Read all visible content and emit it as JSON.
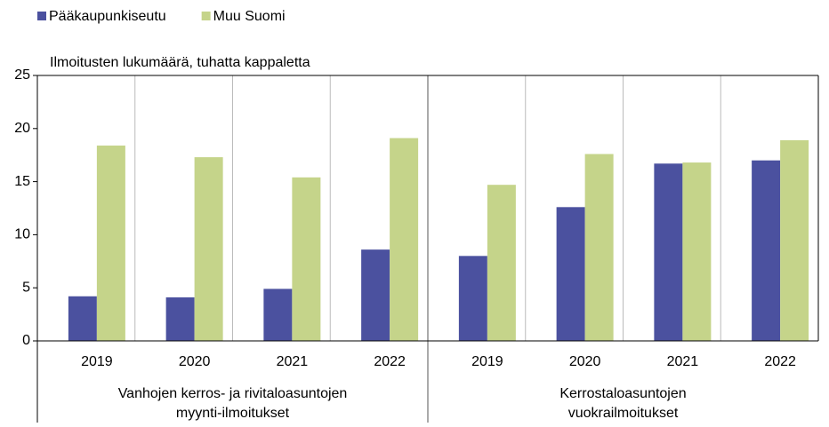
{
  "chart_data": {
    "type": "bar",
    "y_label": "Ilmoitusten lukumäärä, tuhatta kappaletta",
    "groups": [
      {
        "label": [
          "Vanhojen kerros- ja rivitaloasuntojen",
          "myynti-ilmoitukset"
        ],
        "categories": [
          "2019",
          "2020",
          "2021",
          "2022"
        ]
      },
      {
        "label": [
          "Kerrostaloasuntojen",
          "vuokrailmoitukset"
        ],
        "categories": [
          "2019",
          "2020",
          "2021",
          "2022"
        ]
      }
    ],
    "series": [
      {
        "name": "Pääkaupunkiseutu",
        "color": "#4b519f",
        "values": [
          4.2,
          4.1,
          4.9,
          8.6,
          8.0,
          12.6,
          16.7,
          17.0
        ]
      },
      {
        "name": "Muu Suomi",
        "color": "#c5d48a",
        "values": [
          18.4,
          17.3,
          15.4,
          19.1,
          14.7,
          17.6,
          16.8,
          18.9
        ]
      }
    ],
    "ylim": [
      0,
      25
    ],
    "yticks": [
      0,
      5,
      10,
      15,
      20,
      25
    ],
    "legend": "top-left"
  }
}
